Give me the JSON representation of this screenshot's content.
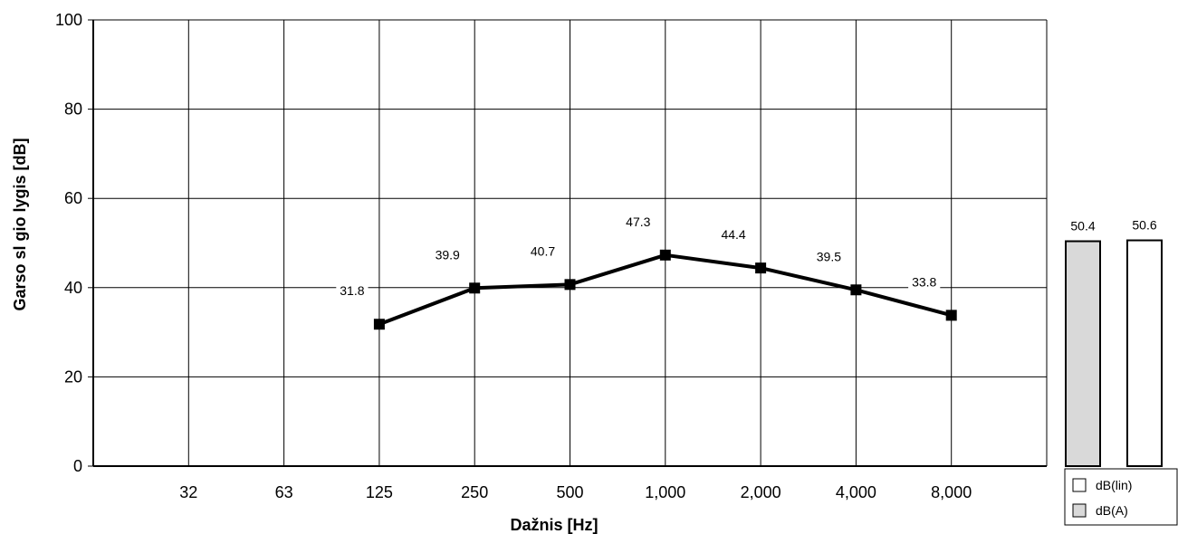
{
  "chart_data": {
    "type": "line",
    "xlabel": "Dažnis [Hz]",
    "ylabel": "Garso sl  gio lygis [dB]",
    "ylim": [
      0,
      100
    ],
    "yticks": [
      0,
      20,
      40,
      60,
      80,
      100
    ],
    "categories": [
      "32",
      "63",
      "125",
      "250",
      "500",
      "1,000",
      "2,000",
      "4,000",
      "8,000"
    ],
    "series": [
      {
        "values": [
          null,
          null,
          31.8,
          39.9,
          40.7,
          47.3,
          44.4,
          39.5,
          33.8
        ],
        "labels": [
          "",
          "",
          "31.8",
          "39.9",
          "40.7",
          "47.3",
          "44.4",
          "39.5",
          "33.8"
        ],
        "color": "#000000"
      }
    ],
    "grid": true,
    "summary_bars": [
      {
        "name": "dB(A)",
        "value": 50.4,
        "label": "50.4",
        "color": "#d9d9d9"
      },
      {
        "name": "dB(lin)",
        "value": 50.6,
        "label": "50.6",
        "color": "#ffffff"
      }
    ],
    "legend": {
      "placement": "bottom-right",
      "items": [
        {
          "label": "dB(lin)",
          "color": "#ffffff"
        },
        {
          "label": "dB(A)",
          "color": "#d9d9d9"
        }
      ]
    }
  }
}
